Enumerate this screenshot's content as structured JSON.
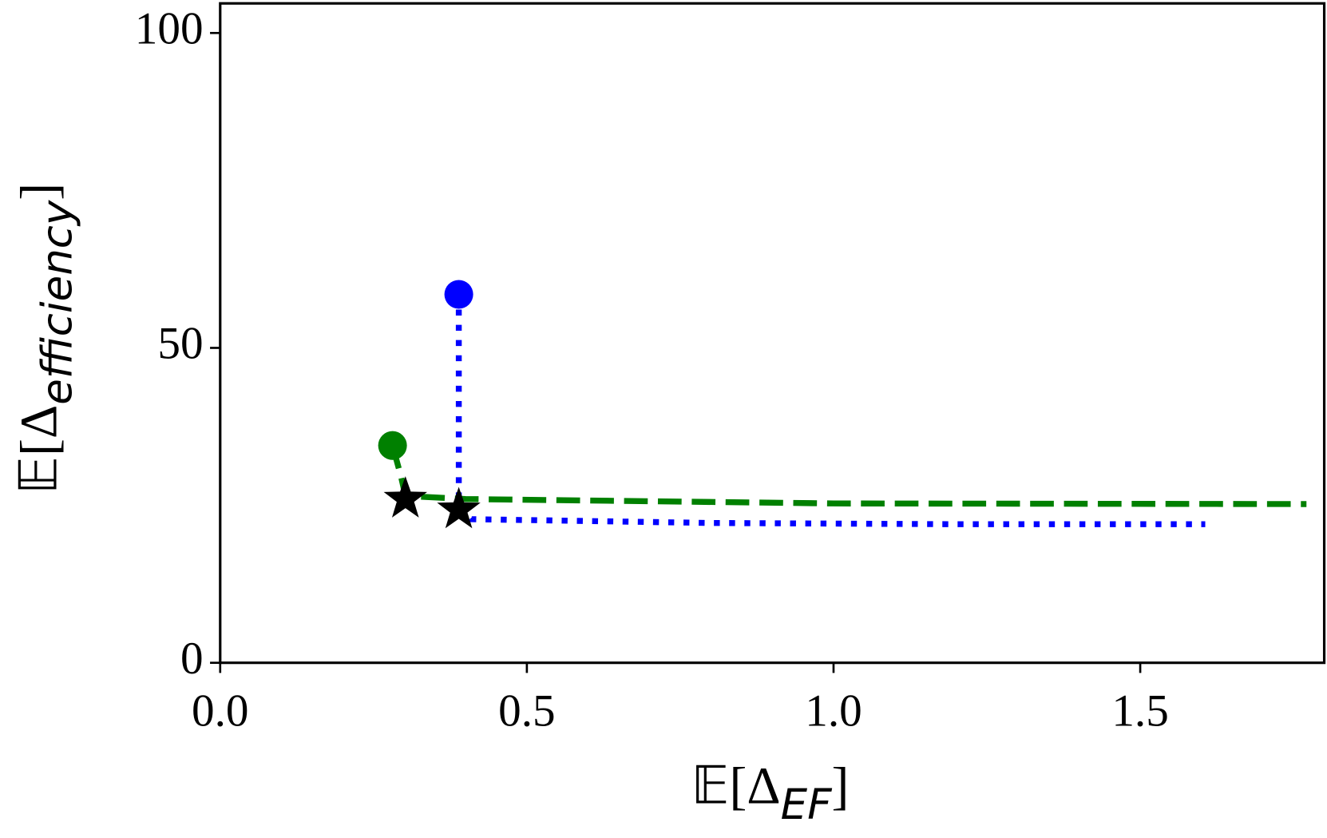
{
  "chart_data": {
    "type": "line",
    "xlabel": {
      "base": "𝔼[Δ",
      "sub": "EF",
      "close": "]"
    },
    "ylabel": {
      "base": "𝔼[Δ",
      "sub": "efficiency",
      "close": "]"
    },
    "xlim": [
      0,
      1.8
    ],
    "ylim": [
      0,
      104.7
    ],
    "xticks": [
      {
        "value": 0,
        "label": "0.0"
      },
      0.5,
      {
        "value": 1,
        "label": "1.0"
      },
      1.5
    ],
    "yticks": [
      0,
      50,
      100
    ],
    "series": [
      {
        "color": "#0000ff",
        "style": "dotted",
        "x": [
          0.389,
          0.389,
          0.41,
          0.8,
          1.2,
          1.606
        ],
        "values": [
          58.5,
          25.0,
          22.8,
          22.2,
          22.0,
          22.0
        ]
      },
      {
        "color": "#008000",
        "style": "dashed",
        "x": [
          0.281,
          0.295,
          0.302,
          0.4,
          1.0,
          1.771
        ],
        "values": [
          34.5,
          29.5,
          26.5,
          26.0,
          25.3,
          25.2
        ]
      }
    ],
    "markers": [
      {
        "shape": "circle",
        "color": "#0000ff",
        "x": 0.389,
        "value": 58.5
      },
      {
        "shape": "circle",
        "color": "#008000",
        "x": 0.281,
        "value": 34.5
      },
      {
        "shape": "star",
        "color": "#000000",
        "x": 0.302,
        "value": 26.0
      },
      {
        "shape": "star",
        "color": "#000000",
        "x": 0.389,
        "value": 24.3
      }
    ]
  }
}
